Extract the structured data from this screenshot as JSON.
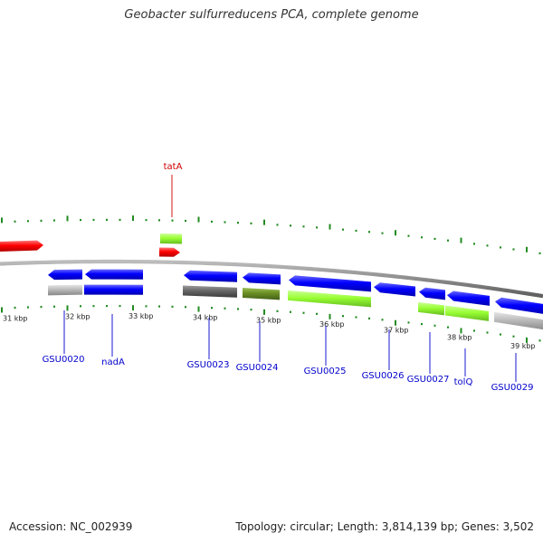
{
  "title": "Geobacter sulfurreducens PCA, complete genome",
  "footer": {
    "accession": "Accession: NC_002939",
    "summary": "Topology: circular; Length: 3,814,139 bp; Genes: 3,502"
  },
  "scale": {
    "labels": [
      "31 kbp",
      "32 kbp",
      "33 kbp",
      "34 kbp",
      "35 kbp",
      "36 kbp",
      "37 kbp",
      "38 kbp",
      "39 kbp"
    ]
  },
  "genes": [
    {
      "name": "",
      "strand": "+",
      "track": "outer",
      "color": "#ff0000"
    },
    {
      "name": "tatA",
      "strand": "+",
      "track": "outer",
      "color": "#ff0000"
    },
    {
      "name": "",
      "strand": "+",
      "track": "outer-cog",
      "color": "#99ff33"
    },
    {
      "name": "GSU0020",
      "strand": "-",
      "track": "inner",
      "color": "#0000ff"
    },
    {
      "name": "nadA",
      "strand": "-",
      "track": "inner",
      "color": "#0000ff"
    },
    {
      "name": "GSU0023",
      "strand": "-",
      "track": "inner",
      "color": "#0000ff"
    },
    {
      "name": "GSU0024",
      "strand": "-",
      "track": "inner",
      "color": "#0000ff"
    },
    {
      "name": "GSU0025",
      "strand": "-",
      "track": "inner",
      "color": "#0000ff"
    },
    {
      "name": "GSU0026",
      "strand": "-",
      "track": "inner",
      "color": "#0000ff"
    },
    {
      "name": "GSU0027",
      "strand": "-",
      "track": "inner",
      "color": "#0000ff"
    },
    {
      "name": "tolQ",
      "strand": "-",
      "track": "inner",
      "color": "#0000ff"
    },
    {
      "name": "GSU0029",
      "strand": "-",
      "track": "inner",
      "color": "#0000ff"
    }
  ],
  "colors": {
    "backbone": "#8c8c8c",
    "tick": "#228b22",
    "label_blue": "#0000cc",
    "label_red": "#cc0000",
    "cog_grey": "#bbbbbb",
    "cog_dark": "#666666",
    "cog_olive": "#6b8e23",
    "cog_lime": "#99ff33"
  }
}
